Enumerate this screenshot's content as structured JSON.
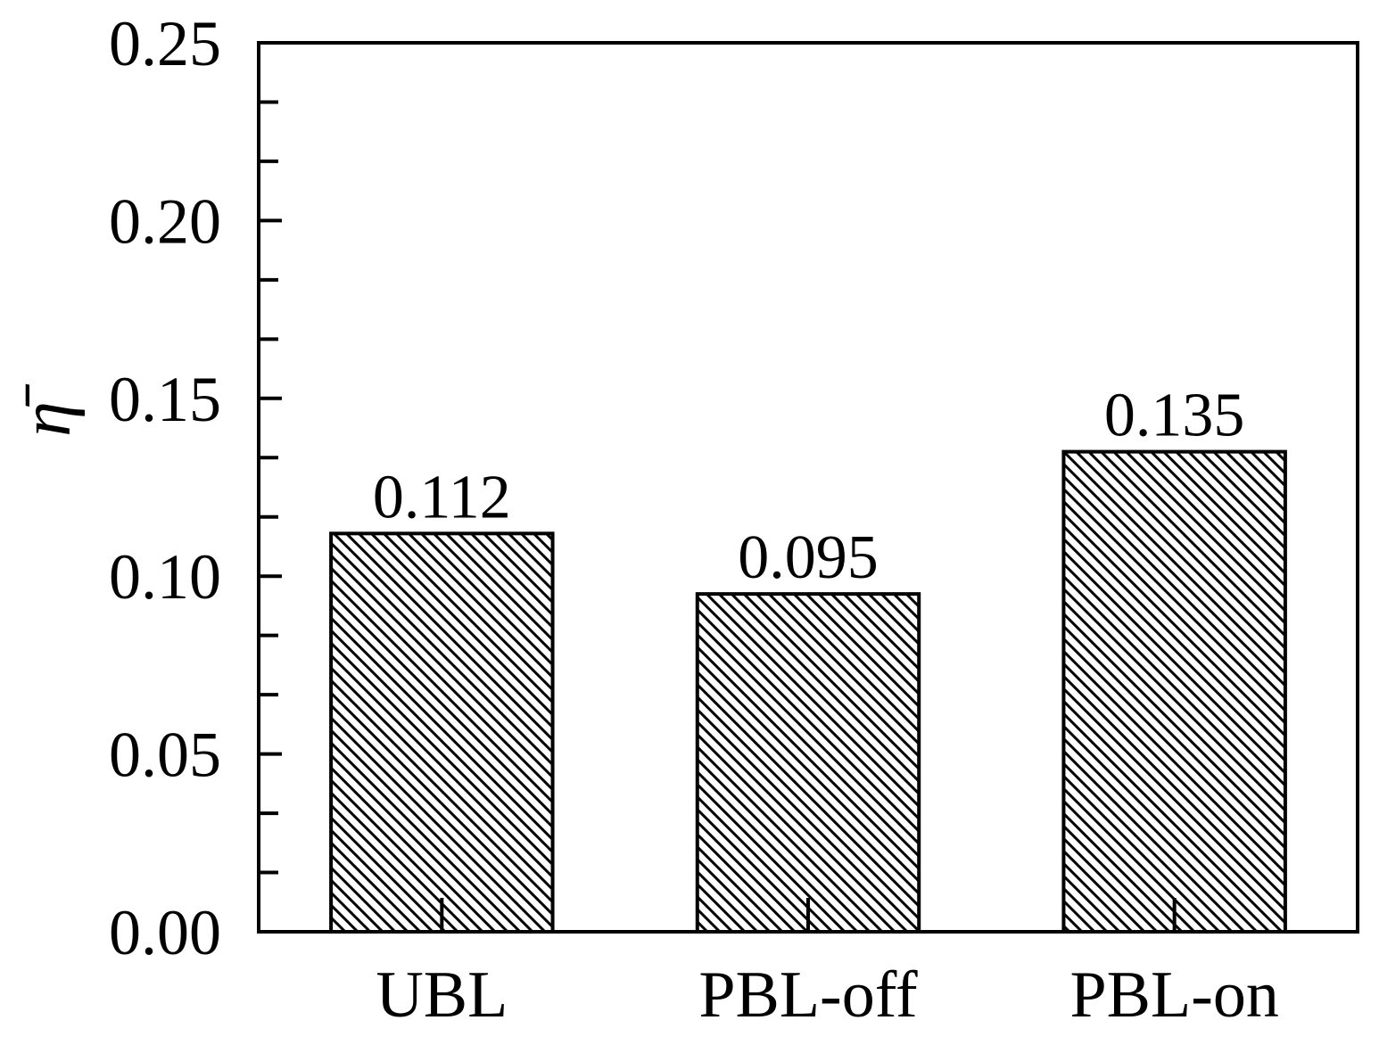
{
  "chart_data": {
    "type": "bar",
    "title": "",
    "xlabel": "",
    "ylabel": "η̄",
    "categories": [
      "UBL",
      "PBL-off",
      "PBL-on"
    ],
    "values": [
      0.112,
      0.095,
      0.135
    ],
    "value_labels": [
      "0.112",
      "0.095",
      "0.135"
    ],
    "ylim": [
      0,
      0.25
    ],
    "yticks": [
      0.0,
      0.05,
      0.1,
      0.15,
      0.2,
      0.25
    ],
    "ytick_labels": [
      "0.00",
      "0.05",
      "0.10",
      "0.15",
      "0.20",
      "0.25"
    ],
    "grid": false,
    "legend": "none",
    "bar_fill": "diagonal hatch",
    "colors": {
      "bar_edge": "#000000",
      "hatch": "#000000",
      "background": "#ffffff"
    }
  }
}
